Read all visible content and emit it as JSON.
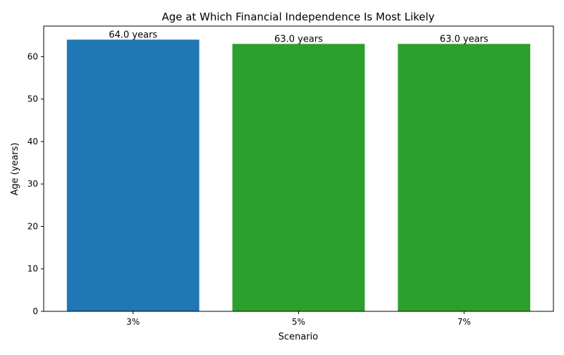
{
  "chart_data": {
    "type": "bar",
    "title": "Age at Which Financial Independence Is Most Likely",
    "xlabel": "Scenario",
    "ylabel": "Age (years)",
    "categories": [
      "3%",
      "5%",
      "7%"
    ],
    "values": [
      64.0,
      63.0,
      63.0
    ],
    "data_labels": [
      "64.0 years",
      "63.0 years",
      "63.0 years"
    ],
    "bar_colors": [
      "#1f77b4",
      "#2ca02c",
      "#2ca02c"
    ],
    "ylim": [
      0,
      67.2
    ],
    "yticks": [
      0,
      10,
      20,
      30,
      40,
      50,
      60
    ],
    "grid": false,
    "legend": "none"
  }
}
